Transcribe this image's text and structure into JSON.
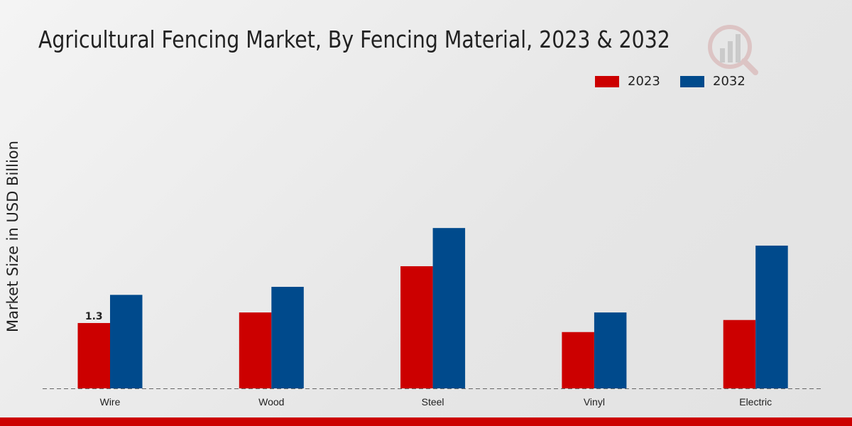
{
  "chart_data": {
    "type": "bar",
    "title": "Agricultural Fencing Market, By Fencing Material, 2023 & 2032",
    "xlabel": "",
    "ylabel": "Market Size in USD Billion",
    "categories": [
      "Wire",
      "Wood",
      "Steel",
      "Vinyl",
      "Electric"
    ],
    "series": [
      {
        "name": "2023",
        "color": "#cc0000",
        "values": [
          1.3,
          1.51,
          2.43,
          1.12,
          1.36
        ]
      },
      {
        "name": "2032",
        "color": "#004a8c",
        "values": [
          1.86,
          2.02,
          3.19,
          1.51,
          2.84
        ]
      }
    ],
    "data_labels": [
      {
        "series": "2023",
        "category": "Wire",
        "text": "1.3"
      }
    ],
    "ylim": [
      0,
      5.65
    ],
    "grid": false,
    "legend_position": "top-right"
  }
}
